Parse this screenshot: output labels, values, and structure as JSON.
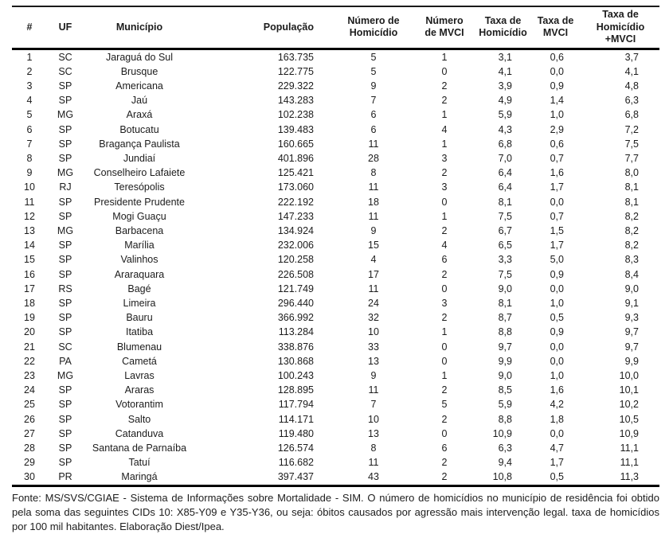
{
  "page": {
    "background": "#ffffff",
    "text_color": "#1c1c1c",
    "border_color": "#000000"
  },
  "table": {
    "columns": [
      {
        "id": "rank",
        "label": "#"
      },
      {
        "id": "uf",
        "label": "UF"
      },
      {
        "id": "municipio",
        "label": "Município"
      },
      {
        "id": "populacao",
        "label": "População"
      },
      {
        "id": "numero_homicidio",
        "label": "Número de\nHomicídio"
      },
      {
        "id": "numero_mvci",
        "label": "Número\nde MVCI"
      },
      {
        "id": "taxa_homicidio",
        "label": "Taxa de\nHomicídio"
      },
      {
        "id": "taxa_mvci",
        "label": "Taxa de\nMVCI"
      },
      {
        "id": "taxa_homicidio_mvci",
        "label": "Taxa de\nHomicídio\n+MVCI"
      }
    ],
    "rows": [
      [
        "1",
        "SC",
        "Jaraguá do Sul",
        "163.735",
        "5",
        "1",
        "3,1",
        "0,6",
        "3,7"
      ],
      [
        "2",
        "SC",
        "Brusque",
        "122.775",
        "5",
        "0",
        "4,1",
        "0,0",
        "4,1"
      ],
      [
        "3",
        "SP",
        "Americana",
        "229.322",
        "9",
        "2",
        "3,9",
        "0,9",
        "4,8"
      ],
      [
        "4",
        "SP",
        "Jaú",
        "143.283",
        "7",
        "2",
        "4,9",
        "1,4",
        "6,3"
      ],
      [
        "5",
        "MG",
        "Araxá",
        "102.238",
        "6",
        "1",
        "5,9",
        "1,0",
        "6,8"
      ],
      [
        "6",
        "SP",
        "Botucatu",
        "139.483",
        "6",
        "4",
        "4,3",
        "2,9",
        "7,2"
      ],
      [
        "7",
        "SP",
        "Bragança Paulista",
        "160.665",
        "11",
        "1",
        "6,8",
        "0,6",
        "7,5"
      ],
      [
        "8",
        "SP",
        "Jundiaí",
        "401.896",
        "28",
        "3",
        "7,0",
        "0,7",
        "7,7"
      ],
      [
        "9",
        "MG",
        "Conselheiro Lafaiete",
        "125.421",
        "8",
        "2",
        "6,4",
        "1,6",
        "8,0"
      ],
      [
        "10",
        "RJ",
        "Teresópolis",
        "173.060",
        "11",
        "3",
        "6,4",
        "1,7",
        "8,1"
      ],
      [
        "11",
        "SP",
        "Presidente Prudente",
        "222.192",
        "18",
        "0",
        "8,1",
        "0,0",
        "8,1"
      ],
      [
        "12",
        "SP",
        "Mogi Guaçu",
        "147.233",
        "11",
        "1",
        "7,5",
        "0,7",
        "8,2"
      ],
      [
        "13",
        "MG",
        "Barbacena",
        "134.924",
        "9",
        "2",
        "6,7",
        "1,5",
        "8,2"
      ],
      [
        "14",
        "SP",
        "Marília",
        "232.006",
        "15",
        "4",
        "6,5",
        "1,7",
        "8,2"
      ],
      [
        "15",
        "SP",
        "Valinhos",
        "120.258",
        "4",
        "6",
        "3,3",
        "5,0",
        "8,3"
      ],
      [
        "16",
        "SP",
        "Araraquara",
        "226.508",
        "17",
        "2",
        "7,5",
        "0,9",
        "8,4"
      ],
      [
        "17",
        "RS",
        "Bagé",
        "121.749",
        "11",
        "0",
        "9,0",
        "0,0",
        "9,0"
      ],
      [
        "18",
        "SP",
        "Limeira",
        "296.440",
        "24",
        "3",
        "8,1",
        "1,0",
        "9,1"
      ],
      [
        "19",
        "SP",
        "Bauru",
        "366.992",
        "32",
        "2",
        "8,7",
        "0,5",
        "9,3"
      ],
      [
        "20",
        "SP",
        "Itatiba",
        "113.284",
        "10",
        "1",
        "8,8",
        "0,9",
        "9,7"
      ],
      [
        "21",
        "SC",
        "Blumenau",
        "338.876",
        "33",
        "0",
        "9,7",
        "0,0",
        "9,7"
      ],
      [
        "22",
        "PA",
        "Cametá",
        "130.868",
        "13",
        "0",
        "9,9",
        "0,0",
        "9,9"
      ],
      [
        "23",
        "MG",
        "Lavras",
        "100.243",
        "9",
        "1",
        "9,0",
        "1,0",
        "10,0"
      ],
      [
        "24",
        "SP",
        "Araras",
        "128.895",
        "11",
        "2",
        "8,5",
        "1,6",
        "10,1"
      ],
      [
        "25",
        "SP",
        "Votorantim",
        "117.794",
        "7",
        "5",
        "5,9",
        "4,2",
        "10,2"
      ],
      [
        "26",
        "SP",
        "Salto",
        "114.171",
        "10",
        "2",
        "8,8",
        "1,8",
        "10,5"
      ],
      [
        "27",
        "SP",
        "Catanduva",
        "119.480",
        "13",
        "0",
        "10,9",
        "0,0",
        "10,9"
      ],
      [
        "28",
        "SP",
        "Santana de Parnaíba",
        "126.574",
        "8",
        "6",
        "6,3",
        "4,7",
        "11,1"
      ],
      [
        "29",
        "SP",
        "Tatuí",
        "116.682",
        "11",
        "2",
        "9,4",
        "1,7",
        "11,1"
      ],
      [
        "30",
        "PR",
        "Maringá",
        "397.437",
        "43",
        "2",
        "10,8",
        "0,5",
        "11,3"
      ]
    ]
  },
  "footer": {
    "source_note": "Fonte: MS/SVS/CGIAE - Sistema de Informações sobre Mortalidade - SIM. O número de homicídios no município de residência foi obtido pela soma das seguintes CIDs 10: X85-Y09 e Y35-Y36, ou seja: óbitos causados por agressão mais intervenção legal. taxa de homicídios por 100 mil habitantes. Elaboração Diest/Ipea."
  }
}
